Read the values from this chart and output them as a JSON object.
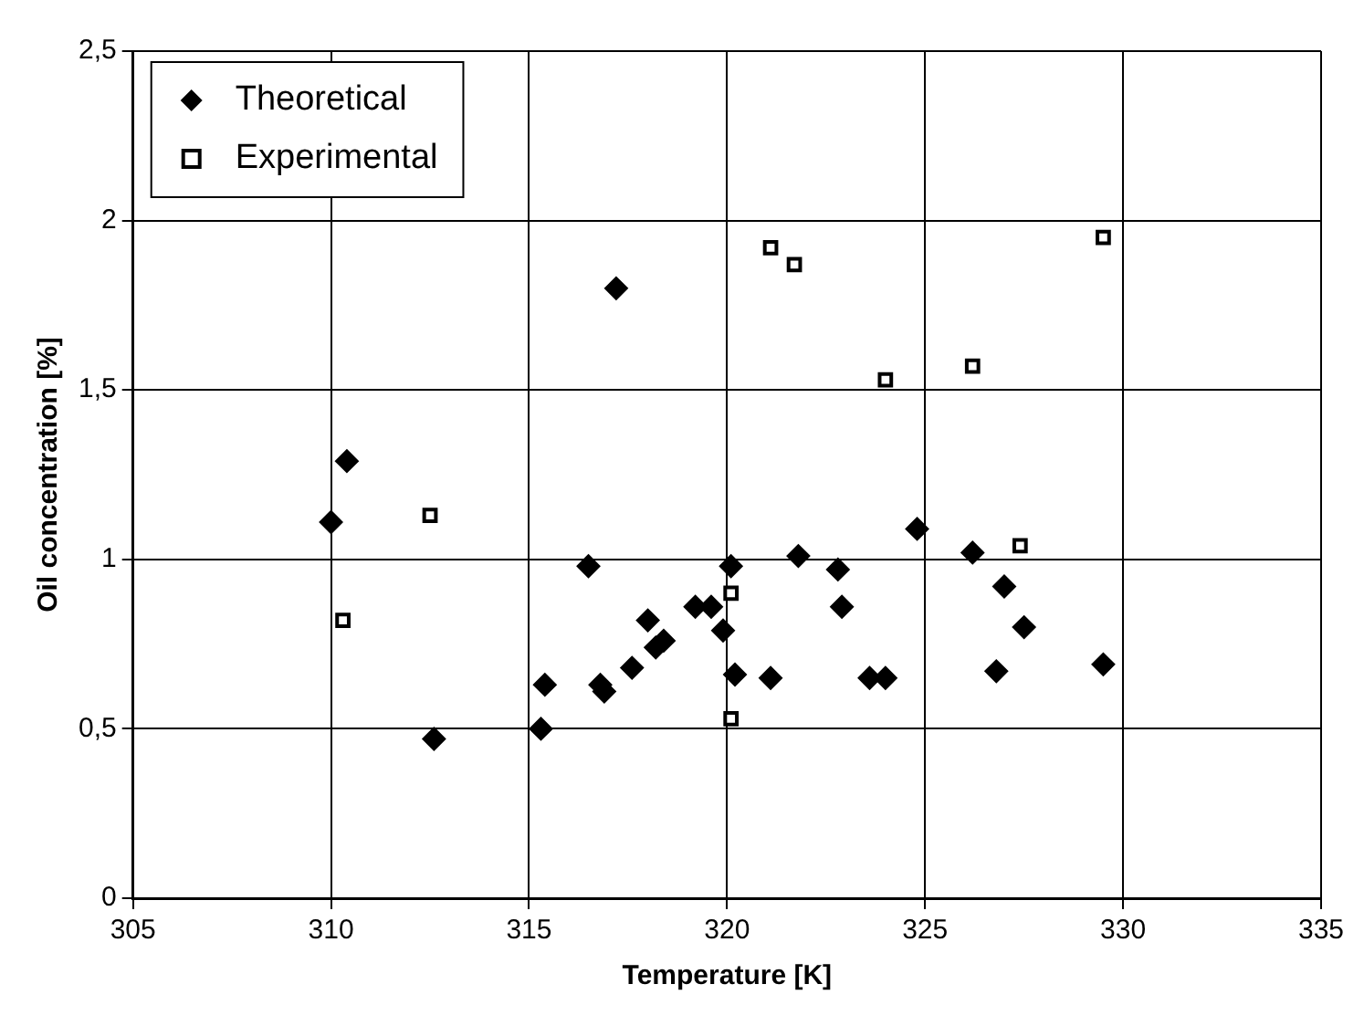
{
  "chart_data": {
    "type": "scatter",
    "xlabel": "Temperature [K]",
    "ylabel": "Oil concentration [%]",
    "xlim": [
      305,
      335
    ],
    "xticks": [
      305,
      310,
      315,
      320,
      325,
      330,
      335
    ],
    "ylim": [
      0,
      2.5
    ],
    "yticks": [
      0,
      {
        "value": 0.5,
        "label": "0,5"
      },
      1,
      {
        "value": 1.5,
        "label": "1,5"
      },
      2,
      {
        "value": 2.5,
        "label": "2,5"
      }
    ],
    "grid": true,
    "legend": "top left",
    "series": [
      {
        "name": "Theoretical",
        "color": "#000000",
        "marker": "diamond",
        "x": [
          310,
          310.4,
          317.2,
          312.6,
          315.3,
          315.4,
          316.5,
          316.8,
          316.9,
          317.6,
          318,
          318.2,
          318.4,
          319.2,
          319.6,
          319.9,
          320.1,
          320.2,
          321.1,
          321.8,
          322.8,
          322.9,
          323.6,
          324,
          324.8,
          326.2,
          326.8,
          327,
          327.5,
          329.5
        ],
        "values": [
          1.11,
          1.29,
          1.8,
          0.47,
          0.5,
          0.63,
          0.98,
          0.63,
          0.61,
          0.68,
          0.82,
          0.74,
          0.76,
          0.86,
          0.86,
          0.79,
          0.98,
          0.66,
          0.65,
          1.01,
          0.97,
          0.86,
          0.65,
          0.65,
          1.09,
          1.02,
          0.67,
          0.92,
          0.8,
          0.69
        ]
      },
      {
        "name": "Experimental",
        "color": "#000000",
        "marker": "square",
        "x": [
          310.3,
          312.5,
          320.1,
          320.1,
          321.1,
          321.7,
          324,
          326.2,
          327.4,
          329.5
        ],
        "values": [
          0.82,
          1.13,
          0.9,
          0.53,
          1.92,
          1.87,
          1.53,
          1.57,
          1.04,
          1.95
        ]
      }
    ]
  }
}
